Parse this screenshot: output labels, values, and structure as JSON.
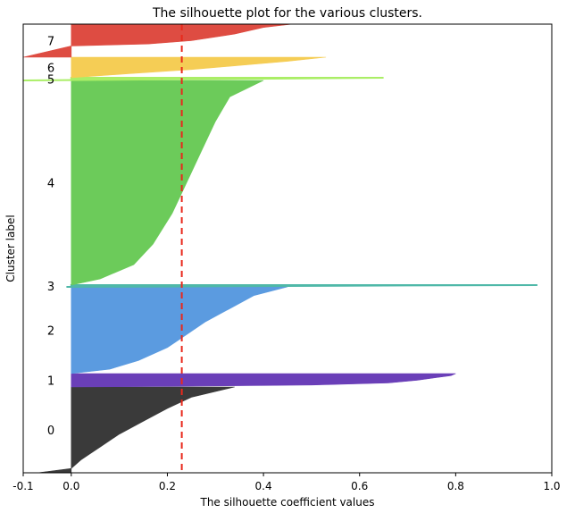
{
  "chart_data": {
    "type": "area",
    "title": "The silhouette plot for the various clusters.",
    "xlabel": "The silhouette coefficient values",
    "ylabel": "Cluster label",
    "xlim": [
      -0.1,
      1.0
    ],
    "xticks": [
      -0.1,
      0.0,
      0.2,
      0.4,
      0.6,
      0.8,
      1.0
    ],
    "xtick_labels": [
      "-0.1",
      "0.0",
      "0.2",
      "0.4",
      "0.6",
      "0.8",
      "1.0"
    ],
    "average_silhouette_score": 0.23,
    "average_line_color": "#e8291c",
    "grid": false,
    "clusters": [
      {
        "label": "0",
        "color": "#3a3a3a",
        "min": -0.07,
        "max": 0.34,
        "profile": [
          [
            0,
            0.34
          ],
          [
            0.12,
            0.25
          ],
          [
            0.25,
            0.2
          ],
          [
            0.4,
            0.15
          ],
          [
            0.55,
            0.1
          ],
          [
            0.7,
            0.06
          ],
          [
            0.85,
            0.02
          ],
          [
            0.95,
            0.0
          ],
          [
            1,
            -0.07
          ]
        ]
      },
      {
        "label": "1",
        "color": "#6a3fb8",
        "min": 0.0,
        "max": 0.8,
        "profile": [
          [
            0,
            0.8
          ],
          [
            0.15,
            0.79
          ],
          [
            0.3,
            0.76
          ],
          [
            0.5,
            0.72
          ],
          [
            0.7,
            0.66
          ],
          [
            0.85,
            0.5
          ],
          [
            0.95,
            0.2
          ],
          [
            1,
            0.0
          ]
        ]
      },
      {
        "label": "2",
        "color": "#5b9be0",
        "min": 0.0,
        "max": 0.45,
        "profile": [
          [
            0,
            0.45
          ],
          [
            0.1,
            0.38
          ],
          [
            0.25,
            0.33
          ],
          [
            0.4,
            0.28
          ],
          [
            0.55,
            0.24
          ],
          [
            0.7,
            0.2
          ],
          [
            0.85,
            0.14
          ],
          [
            0.95,
            0.08
          ],
          [
            1,
            0.0
          ]
        ]
      },
      {
        "label": "3",
        "color": "#4fb8a8",
        "min": -0.01,
        "max": 0.97,
        "profile": [
          [
            0,
            0.97
          ],
          [
            0.2,
            0.7
          ],
          [
            0.5,
            0.45
          ],
          [
            0.8,
            0.2
          ],
          [
            1,
            -0.01
          ]
        ]
      },
      {
        "label": "4",
        "color": "#6ccb5a",
        "min": 0.0,
        "max": 0.4,
        "profile": [
          [
            0,
            0.4
          ],
          [
            0.08,
            0.33
          ],
          [
            0.2,
            0.3
          ],
          [
            0.35,
            0.27
          ],
          [
            0.5,
            0.24
          ],
          [
            0.65,
            0.21
          ],
          [
            0.8,
            0.17
          ],
          [
            0.9,
            0.13
          ],
          [
            0.97,
            0.06
          ],
          [
            1,
            0.0
          ]
        ]
      },
      {
        "label": "5",
        "color": "#aaee66",
        "min": -0.1,
        "max": 0.65,
        "profile": [
          [
            0,
            0.65
          ],
          [
            0.3,
            0.45
          ],
          [
            0.6,
            0.2
          ],
          [
            1,
            -0.1
          ]
        ]
      },
      {
        "label": "6",
        "color": "#f5cd55",
        "min": 0.0,
        "max": 0.53,
        "profile": [
          [
            0,
            0.53
          ],
          [
            0.2,
            0.45
          ],
          [
            0.4,
            0.35
          ],
          [
            0.6,
            0.25
          ],
          [
            0.8,
            0.12
          ],
          [
            1,
            0.0
          ]
        ]
      },
      {
        "label": "7",
        "color": "#de4c42",
        "min": -0.1,
        "max": 0.46,
        "profile": [
          [
            0,
            0.46
          ],
          [
            0.1,
            0.4
          ],
          [
            0.3,
            0.34
          ],
          [
            0.5,
            0.25
          ],
          [
            0.6,
            0.16
          ],
          [
            0.66,
            0.0
          ],
          [
            1,
            -0.1
          ]
        ]
      }
    ]
  }
}
